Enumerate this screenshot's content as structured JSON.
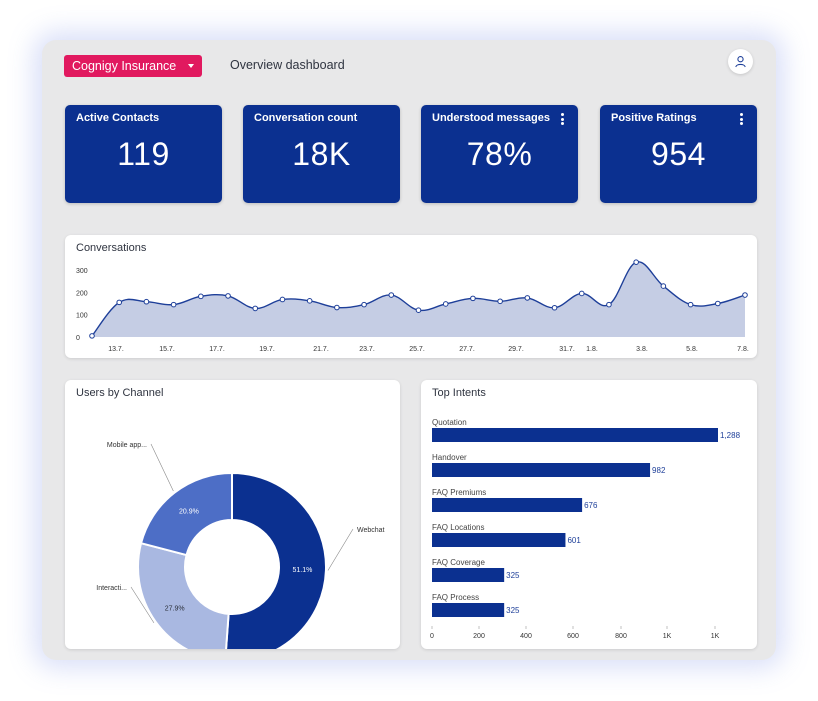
{
  "header": {
    "brand_select": "Cognigy Insurance",
    "page_title": "Overview dashboard",
    "user_icon": "user-icon"
  },
  "kpis": [
    {
      "title": "Active Contacts",
      "value": "119",
      "menu": false
    },
    {
      "title": "Conversation count",
      "value": "18K",
      "menu": false
    },
    {
      "title": "Understood messages",
      "value": "78%",
      "menu": true
    },
    {
      "title": "Positive Ratings",
      "value": "954",
      "menu": true
    }
  ],
  "colors": {
    "brand": "#e1195f",
    "kpi_bg": "#0b3090",
    "line": "#1e3f99",
    "area": "#c5cde4",
    "bar": "#0b3090",
    "donut": [
      "#0b3090",
      "#a9b8e1",
      "#4d6ec6"
    ]
  },
  "chart_data": [
    {
      "type": "area",
      "title": "Conversations",
      "ylim": [
        0,
        300
      ],
      "y_ticks": [
        "0",
        "100",
        "200",
        "300"
      ],
      "x_ticks": [
        "13.7.",
        "15.7.",
        "17.7.",
        "19.7.",
        "21.7.",
        "23.7.",
        "25.7.",
        "27.7.",
        "29.7.",
        "31.7.",
        "1.8.",
        "3.8.",
        "5.8.",
        "7.8."
      ],
      "values": [
        5,
        155,
        158,
        145,
        182,
        184,
        128,
        168,
        162,
        132,
        145,
        188,
        120,
        148,
        173,
        160,
        175,
        131,
        195,
        145,
        335,
        228,
        145,
        150,
        188
      ],
      "grid": false
    },
    {
      "type": "pie",
      "title": "Users by Channel",
      "donut": true,
      "slices": [
        {
          "label": "Webchat",
          "value": 51.1,
          "text": "51.1%"
        },
        {
          "label": "Interacti...",
          "value": 27.9,
          "text": "27.9%"
        },
        {
          "label": "Mobile app...",
          "value": 20.9,
          "text": "20.9%"
        }
      ]
    },
    {
      "type": "bar",
      "orientation": "horizontal",
      "title": "Top Intents",
      "categories": [
        "Quotation",
        "Handover",
        "FAQ Premiums",
        "FAQ Locations",
        "FAQ Coverage",
        "FAQ Process"
      ],
      "values": [
        1288,
        982,
        676,
        601,
        325,
        325
      ],
      "value_labels": [
        "1,288",
        "982",
        "676",
        "601",
        "325",
        "325"
      ],
      "x_ticks": [
        "0",
        "200",
        "400",
        "600",
        "800",
        "1K",
        "1K"
      ],
      "xlim": [
        0,
        1200
      ]
    }
  ]
}
